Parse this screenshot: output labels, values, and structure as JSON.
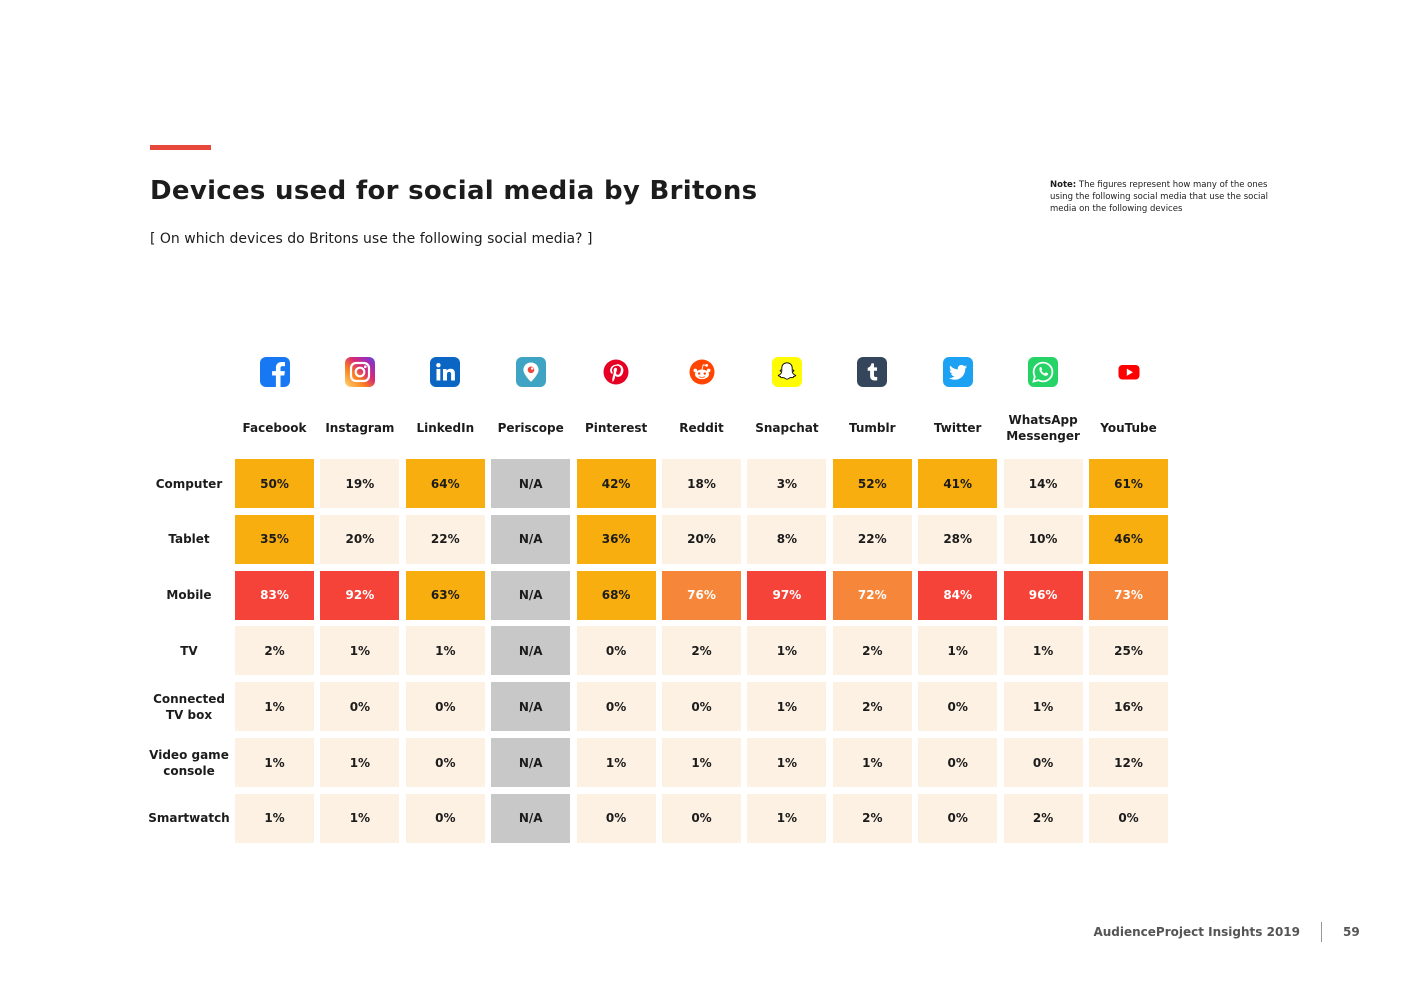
{
  "header": {
    "title": "Devices used for social media by Britons",
    "subtitle": "[ On which devices do Britons use the following social media? ]",
    "note_label": "Note:",
    "note_text": "The figures represent how many of the ones using the following social media that use the social media on the following devices"
  },
  "footer": {
    "source": "AudienceProject Insights 2019",
    "page_number": "59"
  },
  "colors": {
    "accent": "#e8473c",
    "very_high": "#f5433a",
    "high": "#f6863a",
    "medium": "#f8ae0e",
    "low": "#fdf1e3",
    "na": "#c8c8c8"
  },
  "chart_data": {
    "type": "table",
    "title": "Devices used for social media by Britons",
    "columns": [
      {
        "label": "Facebook",
        "icon": "facebook-icon"
      },
      {
        "label": "Instagram",
        "icon": "instagram-icon"
      },
      {
        "label": "LinkedIn",
        "icon": "linkedin-icon"
      },
      {
        "label": "Periscope",
        "icon": "periscope-icon"
      },
      {
        "label": "Pinterest",
        "icon": "pinterest-icon"
      },
      {
        "label": "Reddit",
        "icon": "reddit-icon"
      },
      {
        "label": "Snapchat",
        "icon": "snapchat-icon"
      },
      {
        "label": "Tumblr",
        "icon": "tumblr-icon"
      },
      {
        "label": "Twitter",
        "icon": "twitter-icon"
      },
      {
        "label": "WhatsApp\nMessenger",
        "icon": "whatsapp-icon"
      },
      {
        "label": "YouTube",
        "icon": "youtube-icon"
      }
    ],
    "rows": [
      {
        "label": "Computer",
        "values": [
          "50%",
          "19%",
          "64%",
          "N/A",
          "42%",
          "18%",
          "3%",
          "52%",
          "41%",
          "14%",
          "61%"
        ]
      },
      {
        "label": "Tablet",
        "values": [
          "35%",
          "20%",
          "22%",
          "N/A",
          "36%",
          "20%",
          "8%",
          "22%",
          "28%",
          "10%",
          "46%"
        ]
      },
      {
        "label": "Mobile",
        "values": [
          "83%",
          "92%",
          "63%",
          "N/A",
          "68%",
          "76%",
          "97%",
          "72%",
          "84%",
          "96%",
          "73%"
        ]
      },
      {
        "label": "TV",
        "values": [
          "2%",
          "1%",
          "1%",
          "N/A",
          "0%",
          "2%",
          "1%",
          "2%",
          "1%",
          "1%",
          "25%"
        ]
      },
      {
        "label": "Connected\nTV box",
        "values": [
          "1%",
          "0%",
          "0%",
          "N/A",
          "0%",
          "0%",
          "1%",
          "2%",
          "0%",
          "1%",
          "16%"
        ]
      },
      {
        "label": "Video game\nconsole",
        "values": [
          "1%",
          "1%",
          "0%",
          "N/A",
          "1%",
          "1%",
          "1%",
          "1%",
          "0%",
          "0%",
          "12%"
        ]
      },
      {
        "label": "Smartwatch",
        "values": [
          "1%",
          "1%",
          "0%",
          "N/A",
          "0%",
          "0%",
          "1%",
          "2%",
          "0%",
          "2%",
          "0%"
        ]
      }
    ]
  }
}
